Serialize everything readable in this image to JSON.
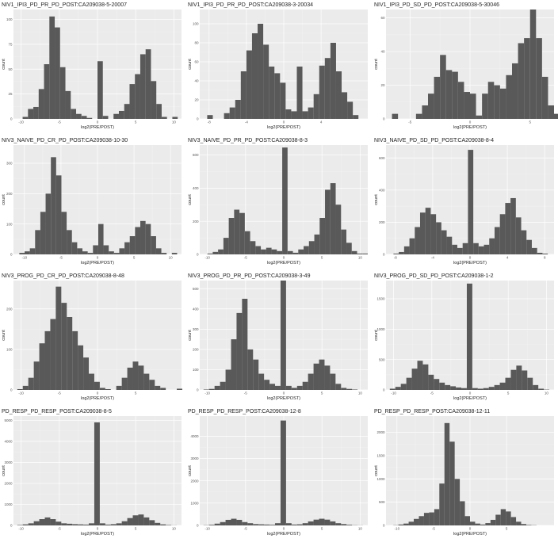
{
  "colors": {
    "panel_bg": "#ebebeb",
    "grid_major": "#ffffff",
    "grid_minor": "#f4f4f4",
    "bar": "#595959"
  },
  "chart_data": [
    {
      "type": "bar",
      "title": "NIV1_IPI3_PD_PR_PD_POST:CA209038-5-20007",
      "xlabel": "log2(PRE/POST)",
      "ylabel": "count",
      "xlim": [
        -11,
        11
      ],
      "ylim": [
        0,
        110
      ],
      "xticks": [
        -10,
        -5,
        0,
        5,
        10
      ],
      "yticks": [
        0,
        25,
        50,
        75,
        100
      ],
      "bin_start": -10.5,
      "bin_width": 0.7,
      "counts": [
        0,
        2,
        10,
        12,
        30,
        55,
        103,
        92,
        52,
        28,
        10,
        5,
        3,
        1,
        0,
        58,
        3,
        0,
        5,
        8,
        15,
        35,
        45,
        65,
        70,
        38,
        15,
        2,
        0,
        2
      ]
    },
    {
      "type": "bar",
      "title": "NIV1_IPI3_PD_PR_PD_POST:CA209038-3-20034",
      "xlabel": "log2(PRE/POST)",
      "ylabel": "count",
      "xlim": [
        -9,
        9
      ],
      "ylim": [
        0,
        115
      ],
      "xticks": [
        -8,
        -4,
        0,
        4
      ],
      "yticks": [
        0,
        20,
        40,
        60,
        80,
        100
      ],
      "bin_start": -8.2,
      "bin_width": 0.6,
      "counts": [
        4,
        0,
        0,
        6,
        12,
        20,
        50,
        72,
        90,
        100,
        78,
        55,
        48,
        38,
        10,
        8,
        55,
        8,
        12,
        26,
        56,
        64,
        80,
        50,
        28,
        18,
        4,
        0,
        0,
        0
      ]
    },
    {
      "type": "bar",
      "title": "NIV1_IPI3_PD_SD_PD_POST:CA209038-5-30046",
      "xlabel": "log2(PRE/POST)",
      "ylabel": "count",
      "xlim": [
        -7,
        7
      ],
      "ylim": [
        0,
        65
      ],
      "xticks": [
        -5,
        0,
        5
      ],
      "yticks": [
        0,
        20,
        40,
        60
      ],
      "bin_start": -6.5,
      "bin_width": 0.5,
      "counts": [
        3,
        0,
        0,
        0,
        3,
        8,
        15,
        25,
        38,
        29,
        28,
        22,
        16,
        15,
        2,
        15,
        22,
        20,
        18,
        26,
        33,
        45,
        48,
        65,
        48,
        25,
        8,
        3,
        0,
        2
      ]
    },
    {
      "type": "bar",
      "title": "NIV3_NAIVE_PD_CR_PD_POST:CA209038-10-30",
      "xlabel": "log2(PRE/POST)",
      "ylabel": "count",
      "xlim": [
        -11.5,
        11.5
      ],
      "ylim": [
        0,
        360
      ],
      "xticks": [
        -10,
        -5,
        0,
        5,
        10
      ],
      "yticks": [
        0,
        100,
        200,
        300
      ],
      "bin_start": -10.7,
      "bin_width": 0.72,
      "counts": [
        5,
        10,
        20,
        80,
        140,
        200,
        320,
        260,
        140,
        80,
        40,
        20,
        10,
        5,
        30,
        100,
        30,
        10,
        5,
        20,
        40,
        60,
        90,
        110,
        100,
        60,
        20,
        5,
        0,
        5
      ]
    },
    {
      "type": "bar",
      "title": "NIV3_NAIVE_PD_PR_PD_POST:CA209038-8-3",
      "xlabel": "log2(PRE/POST)",
      "ylabel": "count",
      "xlim": [
        -11,
        11
      ],
      "ylim": [
        0,
        660
      ],
      "xticks": [
        -10,
        -5,
        0,
        5,
        10
      ],
      "yticks": [
        0,
        200,
        400,
        600
      ],
      "bin_start": -10,
      "bin_width": 0.7,
      "counts": [
        5,
        15,
        30,
        100,
        220,
        270,
        250,
        140,
        80,
        50,
        30,
        40,
        30,
        20,
        645,
        20,
        10,
        30,
        50,
        80,
        120,
        220,
        390,
        430,
        300,
        150,
        70,
        20,
        5,
        5
      ]
    },
    {
      "type": "bar",
      "title": "NIV3_NAIVE_PD_SD_PD_POST:CA209038-8-4",
      "xlabel": "log2(PRE/POST)",
      "ylabel": "count",
      "xlim": [
        -9,
        9
      ],
      "ylim": [
        0,
        680
      ],
      "xticks": [
        -8,
        -4,
        0,
        4,
        8
      ],
      "yticks": [
        0,
        200,
        400,
        600
      ],
      "bin_start": -8.2,
      "bin_width": 0.57,
      "counts": [
        5,
        15,
        50,
        100,
        170,
        260,
        290,
        250,
        200,
        150,
        110,
        60,
        40,
        70,
        650,
        70,
        50,
        60,
        100,
        170,
        250,
        320,
        350,
        230,
        150,
        90,
        40,
        10,
        5,
        0
      ]
    },
    {
      "type": "bar",
      "title": "NIV3_PROG_PD_CR_PD_POST:CA209038-8-48",
      "xlabel": "log2(PRE/POST)",
      "ylabel": "count",
      "xlim": [
        -11,
        11
      ],
      "ylim": [
        0,
        270
      ],
      "xticks": [
        -10,
        -5,
        0,
        5
      ],
      "yticks": [
        0,
        100,
        200
      ],
      "bin_start": -10.5,
      "bin_width": 0.72,
      "counts": [
        2,
        10,
        30,
        70,
        115,
        145,
        175,
        255,
        215,
        180,
        145,
        110,
        80,
        40,
        20,
        5,
        2,
        0,
        10,
        30,
        55,
        70,
        60,
        40,
        25,
        10,
        5,
        0,
        0,
        3
      ]
    },
    {
      "type": "bar",
      "title": "NIV3_PROG_PD_PR_PD_POST:CA209038-3-49",
      "xlabel": "log2(PRE/POST)",
      "ylabel": "count",
      "xlim": [
        -11,
        11
      ],
      "ylim": [
        0,
        540
      ],
      "xticks": [
        -10,
        -5,
        0,
        5,
        10
      ],
      "yticks": [
        0,
        100,
        200,
        300,
        400,
        500
      ],
      "bin_start": -10.5,
      "bin_width": 0.72,
      "counts": [
        2,
        5,
        20,
        40,
        100,
        250,
        380,
        450,
        200,
        150,
        80,
        50,
        30,
        20,
        540,
        20,
        10,
        20,
        40,
        80,
        130,
        150,
        120,
        80,
        30,
        10,
        5,
        2,
        0,
        0
      ]
    },
    {
      "type": "bar",
      "title": "NIV3_PROG_PD_SD_PD_POST:CA209038-1-2",
      "xlabel": "log2(PRE/POST)",
      "ylabel": "count",
      "xlim": [
        -11,
        11
      ],
      "ylim": [
        0,
        1800
      ],
      "xticks": [
        -10,
        -5,
        0,
        5,
        10
      ],
      "yticks": [
        0,
        500,
        1000,
        1500
      ],
      "bin_start": -10.5,
      "bin_width": 0.72,
      "counts": [
        20,
        50,
        100,
        200,
        350,
        480,
        420,
        250,
        180,
        120,
        80,
        60,
        40,
        30,
        1750,
        30,
        20,
        30,
        50,
        80,
        120,
        200,
        330,
        400,
        320,
        200,
        80,
        20,
        5,
        0
      ]
    },
    {
      "type": "bar",
      "title": "PD_RESP_PD_RESP_POST:CA209038-8-5",
      "xlabel": "log2(PRE/POST)",
      "ylabel": "count",
      "xlim": [
        -11,
        11
      ],
      "ylim": [
        0,
        5200
      ],
      "xticks": [
        -10,
        -5,
        0,
        5,
        10
      ],
      "yticks": [
        0,
        1000,
        2000,
        3000,
        4000,
        5000
      ],
      "bin_start": -10.5,
      "bin_width": 0.72,
      "counts": [
        20,
        50,
        100,
        200,
        300,
        380,
        300,
        180,
        100,
        80,
        60,
        50,
        40,
        100,
        4900,
        100,
        40,
        60,
        100,
        200,
        350,
        480,
        520,
        380,
        250,
        120,
        50,
        20,
        5,
        0
      ]
    },
    {
      "type": "bar",
      "title": "PD_RESP_PD_RESP_POST:CA209038-12-8",
      "xlabel": "log2(PRE/POST)",
      "ylabel": "count",
      "xlim": [
        -11,
        11
      ],
      "ylim": [
        0,
        4900
      ],
      "xticks": [
        -10,
        -5,
        0,
        5,
        10
      ],
      "yticks": [
        0,
        1000,
        2000,
        3000,
        4000
      ],
      "bin_start": -10.5,
      "bin_width": 0.72,
      "counts": [
        10,
        30,
        80,
        150,
        250,
        300,
        250,
        150,
        100,
        60,
        50,
        40,
        30,
        100,
        4700,
        100,
        40,
        50,
        100,
        180,
        260,
        300,
        260,
        180,
        100,
        60,
        30,
        10,
        5,
        0
      ]
    },
    {
      "type": "bar",
      "title": "PD_RESP_PD_RESP_POST:CA209038-12-11",
      "xlabel": "log2(PRE/POST)",
      "ylabel": "count",
      "xlim": [
        -11.5,
        11.5
      ],
      "ylim": [
        0,
        2350
      ],
      "xticks": [
        -10,
        -5,
        0,
        5
      ],
      "yticks": [
        0,
        500,
        1000,
        1500,
        2000
      ],
      "bin_start": -10.5,
      "bin_width": 0.7,
      "counts": [
        5,
        20,
        40,
        80,
        140,
        200,
        270,
        280,
        350,
        900,
        2200,
        1800,
        1000,
        520,
        200,
        80,
        40,
        20,
        50,
        120,
        230,
        350,
        300,
        180,
        80,
        30,
        10,
        5,
        0,
        0
      ]
    }
  ]
}
